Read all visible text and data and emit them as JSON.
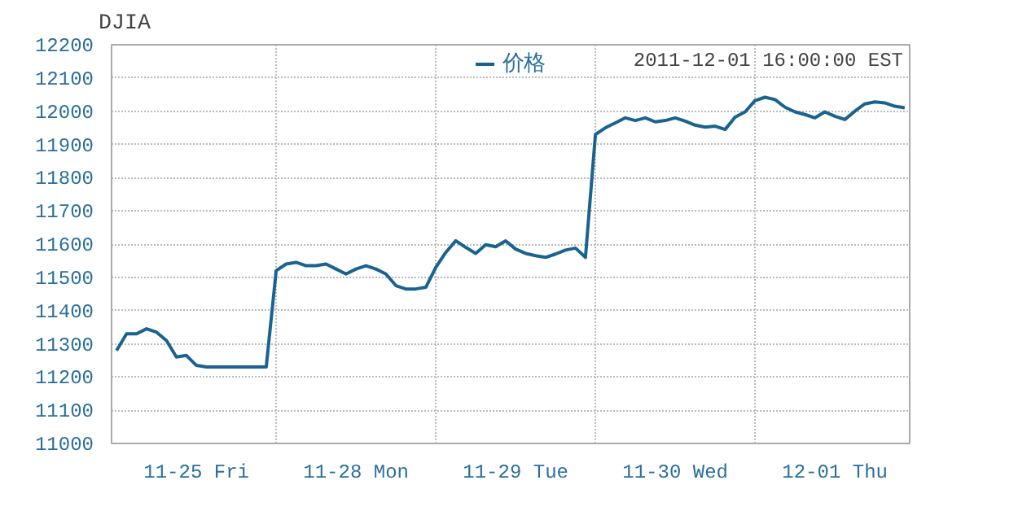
{
  "chart_data": {
    "type": "line",
    "title": "DJIA",
    "annotations": [
      "2011-12-01 16:00:00 EST"
    ],
    "categories": [
      null,
      null,
      null,
      null,
      null,
      null,
      null,
      null,
      "11-25 Fri",
      null,
      null,
      null,
      null,
      null,
      null,
      null,
      null,
      null,
      null,
      null,
      null,
      null,
      null,
      null,
      "11-28 Mon",
      null,
      null,
      null,
      null,
      null,
      null,
      null,
      null,
      null,
      null,
      null,
      null,
      null,
      null,
      null,
      "11-29 Tue",
      null,
      null,
      null,
      null,
      null,
      null,
      null,
      null,
      null,
      null,
      null,
      null,
      null,
      null,
      null,
      "11-30 Wed",
      null,
      null,
      null,
      null,
      null,
      null,
      null,
      null,
      null,
      null,
      null,
      null,
      null,
      null,
      null,
      "12-01 Thu",
      null,
      null,
      null,
      null,
      null,
      null,
      null
    ],
    "series": [
      {
        "name": "价格",
        "color": "#1a6390",
        "values": [
          11280,
          11330,
          11330,
          11345,
          11335,
          11310,
          11260,
          11265,
          11235,
          11230,
          11230,
          11230,
          11230,
          11230,
          11230,
          11230,
          11520,
          11540,
          11545,
          11535,
          11535,
          11540,
          11525,
          11510,
          11525,
          11535,
          11525,
          11510,
          11475,
          11465,
          11465,
          11470,
          11530,
          11575,
          11610,
          11590,
          11572,
          11598,
          11592,
          11610,
          11585,
          11572,
          11565,
          11560,
          11570,
          11582,
          11588,
          11560,
          11930,
          11950,
          11965,
          11980,
          11972,
          11980,
          11968,
          11972,
          11980,
          11970,
          11958,
          11952,
          11955,
          11945,
          11982,
          11998,
          12032,
          12042,
          12035,
          12012,
          11998,
          11990,
          11980,
          11998,
          11985,
          11975,
          12000,
          12022,
          12028,
          12025,
          12015,
          12010
        ]
      }
    ],
    "ylim": [
      11000,
      12200
    ],
    "yticks": [
      11000,
      11100,
      11200,
      11300,
      11400,
      11500,
      11600,
      11700,
      11800,
      11900,
      12000,
      12100,
      12200
    ],
    "grid": true,
    "legend": "top",
    "line_style": "solid",
    "marker": "none"
  }
}
